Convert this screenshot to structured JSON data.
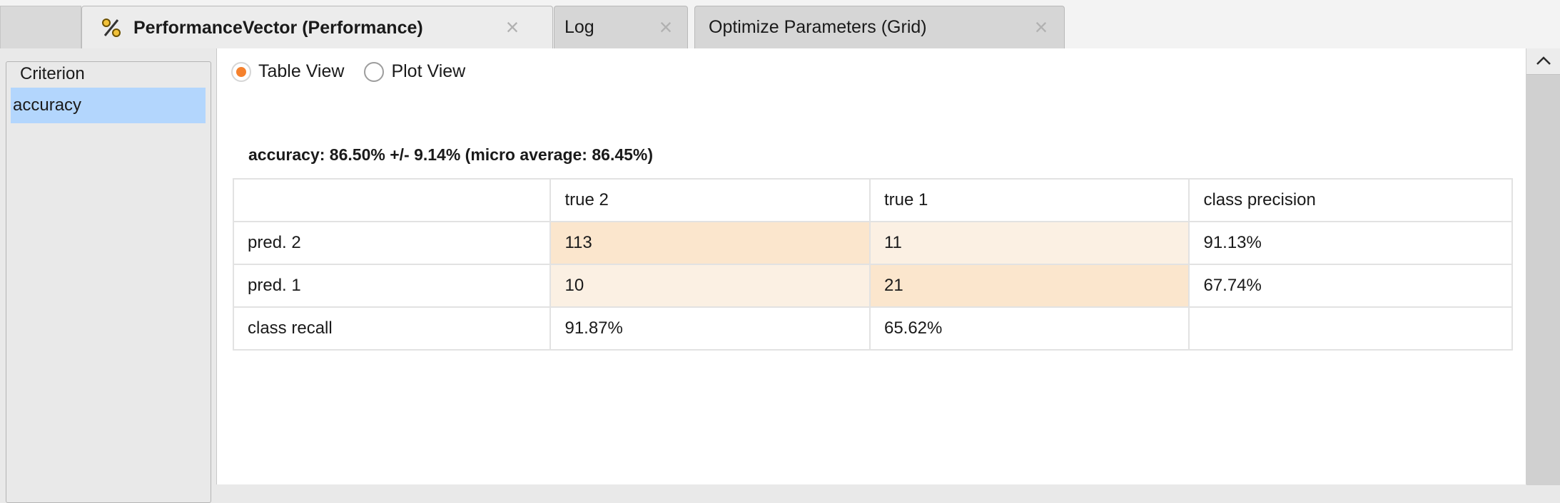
{
  "tabs": [
    {
      "label": "PerformanceVector (Performance)",
      "icon": "percent-icon",
      "active": true
    },
    {
      "label": "Log",
      "active": false
    },
    {
      "label": "Optimize Parameters (Grid)",
      "active": false
    }
  ],
  "criterion": {
    "legend": "Criterion",
    "selected": "accuracy"
  },
  "view": {
    "table_view_label": "Table View",
    "plot_view_label": "Plot View",
    "selected": "Table View"
  },
  "summary": "accuracy: 86.50% +/- 9.14% (micro average: 86.45%)",
  "matrix": {
    "header": [
      "",
      "true 2",
      "true 1",
      "class precision"
    ],
    "rows": [
      [
        "pred. 2",
        "113",
        "11",
        "91.13%"
      ],
      [
        "pred. 1",
        "10",
        "21",
        "67.74%"
      ],
      [
        "class recall",
        "91.87%",
        "65.62%",
        ""
      ]
    ]
  },
  "colors": {
    "accent": "#f5812d",
    "selection": "#b3d6fd",
    "diagonal_cell": "#fbe6cd",
    "offdiagonal_cell": "#fbf0e3"
  }
}
